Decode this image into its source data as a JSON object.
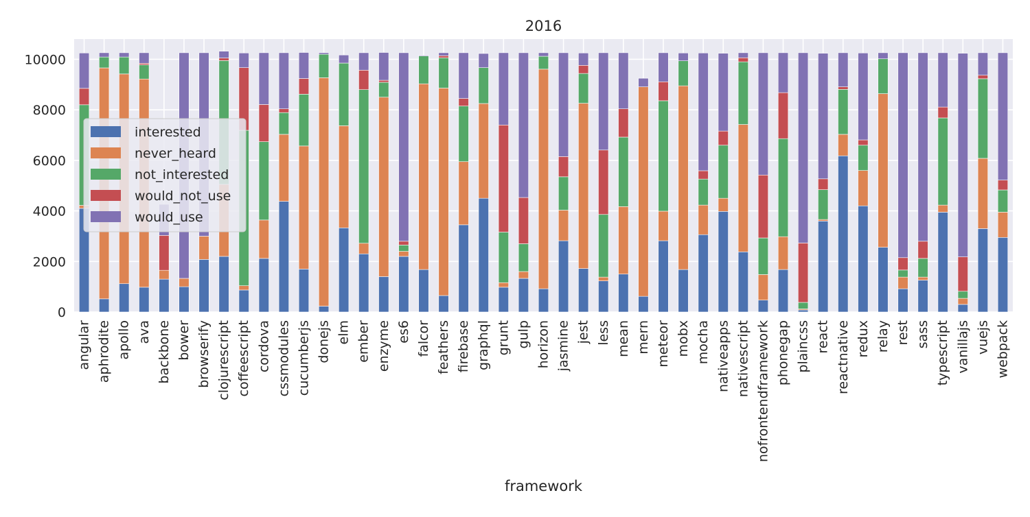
{
  "chart_data": {
    "type": "bar",
    "stacked": true,
    "title": "2016",
    "xlabel": "framework",
    "ylabel": "",
    "ylim": [
      0,
      10800
    ],
    "yticks": [
      0,
      2000,
      4000,
      6000,
      8000,
      10000
    ],
    "grid": true,
    "legend_position": "upper-left",
    "categories": [
      "angular",
      "aphrodite",
      "apollo",
      "ava",
      "backbone",
      "bower",
      "browserify",
      "clojurescript",
      "coffeescript",
      "cordova",
      "cssmodules",
      "cucumberjs",
      "donejs",
      "elm",
      "ember",
      "enzyme",
      "es6",
      "falcor",
      "feathers",
      "firebase",
      "graphql",
      "grunt",
      "gulp",
      "horizon",
      "jasmine",
      "jest",
      "less",
      "mean",
      "mern",
      "meteor",
      "mobx",
      "mocha",
      "nativeapps",
      "nativescript",
      "nofrontendframework",
      "phonegap",
      "plaincss",
      "react",
      "reactnative",
      "redux",
      "relay",
      "rest",
      "sass",
      "typescript",
      "vanillajs",
      "vuejs",
      "webpack"
    ],
    "series": [
      {
        "name": "interested",
        "color": "#4c72b0",
        "values": [
          4100,
          520,
          1120,
          980,
          1300,
          1000,
          2080,
          2200,
          870,
          2120,
          4380,
          1700,
          230,
          3330,
          2300,
          1400,
          2200,
          1680,
          650,
          3450,
          4500,
          980,
          1330,
          920,
          2820,
          1720,
          1230,
          1500,
          620,
          2820,
          1680,
          3060,
          3980,
          2380,
          470,
          1680,
          80,
          3600,
          6180,
          4200,
          2560,
          920,
          1260,
          3950,
          300,
          3300,
          2950
        ]
      },
      {
        "name": "never_heard",
        "color": "#dd8452",
        "values": [
          120,
          9140,
          8300,
          8240,
          350,
          330,
          920,
          2850,
          170,
          1520,
          2650,
          4870,
          9040,
          4040,
          420,
          7100,
          200,
          7350,
          8210,
          2500,
          3750,
          180,
          270,
          8690,
          1210,
          6540,
          150,
          2670,
          8290,
          1170,
          7270,
          1170,
          520,
          5040,
          1010,
          1300,
          40,
          60,
          850,
          1400,
          6080,
          460,
          120,
          280,
          240,
          2780,
          1000
        ]
      },
      {
        "name": "not_interested",
        "color": "#55a868",
        "values": [
          3980,
          430,
          670,
          560,
          0,
          0,
          0,
          4900,
          6150,
          3100,
          860,
          2050,
          930,
          2480,
          6080,
          590,
          250,
          1100,
          1200,
          2200,
          1420,
          2000,
          1100,
          510,
          1320,
          1180,
          2480,
          2750,
          0,
          4370,
          990,
          1030,
          2100,
          2480,
          1450,
          3880,
          260,
          1180,
          1780,
          1000,
          1380,
          280,
          740,
          3450,
          280,
          3150,
          880
        ]
      },
      {
        "name": "would_not_use",
        "color": "#c44e52",
        "values": [
          650,
          0,
          0,
          60,
          1380,
          0,
          0,
          100,
          2480,
          1470,
          150,
          620,
          0,
          0,
          770,
          80,
          150,
          0,
          80,
          300,
          0,
          4240,
          1830,
          0,
          800,
          320,
          2550,
          1120,
          0,
          750,
          0,
          330,
          560,
          160,
          2490,
          1820,
          2350,
          430,
          100,
          210,
          0,
          490,
          680,
          430,
          1360,
          140,
          390
        ]
      },
      {
        "name": "would_use",
        "color": "#8172b3",
        "values": [
          1400,
          170,
          170,
          420,
          1230,
          8930,
          7260,
          270,
          580,
          2050,
          2220,
          1030,
          60,
          320,
          690,
          1100,
          7460,
          30,
          120,
          1810,
          560,
          2860,
          5730,
          140,
          4110,
          490,
          3850,
          2220,
          340,
          1150,
          310,
          4660,
          3080,
          200,
          4840,
          1580,
          7530,
          4970,
          1350,
          3440,
          240,
          8110,
          7460,
          2150,
          8060,
          890,
          5040
        ]
      }
    ]
  }
}
